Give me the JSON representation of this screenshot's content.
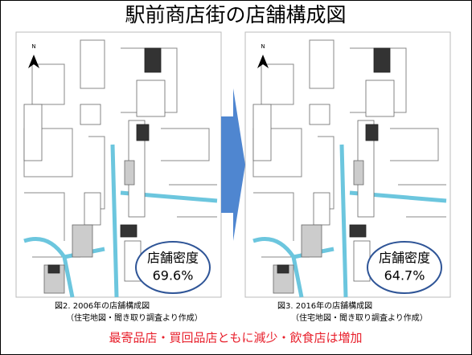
{
  "title": "駅前商店街の店舗構成図",
  "panels": [
    {
      "caption": "図2. 2006年の店舗構成図",
      "source": "（住宅地図・聞き取り調査より作成）",
      "density_label": "店舗密度",
      "density": "69.6%",
      "north": "N"
    },
    {
      "caption": "図3. 2016年の店舗構成図",
      "source": "（住宅地図・聞き取り調査より作成）",
      "density_label": "店舗密度",
      "density": "64.7%",
      "north": "N"
    }
  ],
  "conclusion": "最寄品店・買回品店ともに減少・飲食店は増加"
}
